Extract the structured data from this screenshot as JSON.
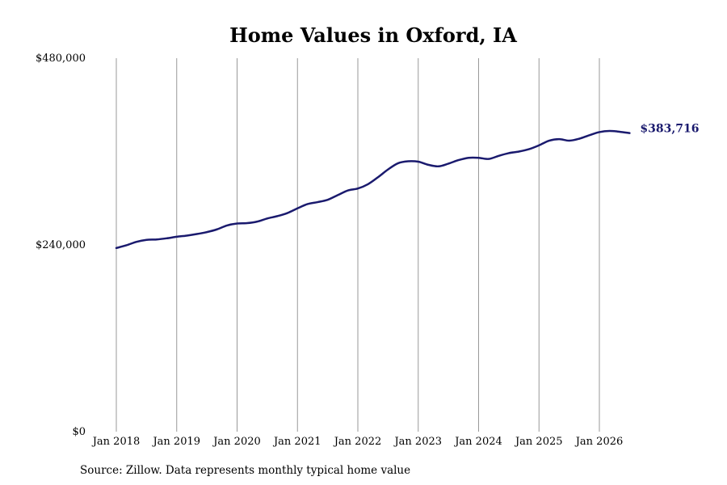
{
  "chart_data": {
    "type": "line",
    "title": "Home Values in Oxford, IA",
    "xlabel": "",
    "ylabel": "",
    "ylim": [
      0,
      480000
    ],
    "y_ticks": [
      {
        "value": 0,
        "label": "$0"
      },
      {
        "value": 240000,
        "label": "$240,000"
      },
      {
        "value": 480000,
        "label": "$480,000"
      }
    ],
    "x_ticks": [
      {
        "value": "2018-01",
        "label": "Jan 2018"
      },
      {
        "value": "2019-01",
        "label": "Jan 2019"
      },
      {
        "value": "2020-01",
        "label": "Jan 2020"
      },
      {
        "value": "2021-01",
        "label": "Jan 2021"
      },
      {
        "value": "2022-01",
        "label": "Jan 2022"
      },
      {
        "value": "2023-01",
        "label": "Jan 2023"
      },
      {
        "value": "2024-01",
        "label": "Jan 2024"
      },
      {
        "value": "2025-01",
        "label": "Jan 2025"
      },
      {
        "value": "2026-01",
        "label": "Jan 2026"
      }
    ],
    "grid": {
      "vertical": true,
      "horizontal": false
    },
    "line_color": "#1a1a6e",
    "grid_color": "#999999",
    "series": [
      {
        "x": [
          "2018-01",
          "2018-03",
          "2018-05",
          "2018-07",
          "2018-09",
          "2018-11",
          "2019-01",
          "2019-03",
          "2019-05",
          "2019-07",
          "2019-09",
          "2019-11",
          "2020-01",
          "2020-03",
          "2020-05",
          "2020-07",
          "2020-09",
          "2020-11",
          "2021-01",
          "2021-03",
          "2021-05",
          "2021-07",
          "2021-09",
          "2021-11",
          "2022-01",
          "2022-03",
          "2022-05",
          "2022-07",
          "2022-09",
          "2022-11",
          "2023-01",
          "2023-03",
          "2023-05",
          "2023-07",
          "2023-09",
          "2023-11",
          "2024-01",
          "2024-03",
          "2024-05",
          "2024-07",
          "2024-09",
          "2024-11",
          "2025-01",
          "2025-03",
          "2025-05",
          "2025-07",
          "2025-09",
          "2025-11",
          "2026-01",
          "2026-03",
          "2026-05",
          "2026-07"
        ],
        "values": [
          236000,
          239500,
          244000,
          246500,
          247000,
          248500,
          250500,
          252000,
          254000,
          256500,
          260000,
          265000,
          267500,
          268000,
          270000,
          274000,
          277000,
          281000,
          287000,
          292500,
          295000,
          298000,
          304000,
          310000,
          312500,
          318000,
          327000,
          337000,
          345000,
          347500,
          347000,
          343000,
          341000,
          344500,
          349000,
          352000,
          352000,
          350500,
          354500,
          358000,
          360000,
          363000,
          368000,
          374000,
          376000,
          374000,
          376500,
          381000,
          385000,
          386500,
          385500,
          383716
        ]
      }
    ],
    "end_label": "$383,716"
  },
  "source_note": "Source: Zillow. Data represents monthly typical home value"
}
